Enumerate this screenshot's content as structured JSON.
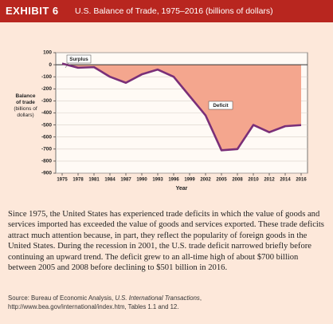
{
  "header": {
    "exhibit": "EXHIBIT 6",
    "title": "U.S. Balance of Trade, 1975–2016 (billions of dollars)"
  },
  "chart_data": {
    "type": "line",
    "y_label": "Balance of trade (billions of dollars)",
    "x_label": "Year",
    "categories": [
      "1975",
      "1978",
      "1981",
      "1984",
      "1987",
      "1990",
      "1993",
      "1996",
      "1999",
      "2002",
      "2005",
      "2008",
      "2010",
      "2012",
      "2014",
      "2016"
    ],
    "series": [
      {
        "name": "Balance of trade",
        "color": "#7a2f78",
        "values": [
          10,
          -25,
          -20,
          -100,
          -150,
          -80,
          -40,
          -100,
          -260,
          -420,
          -710,
          -700,
          -500,
          -560,
          -510,
          -501
        ]
      }
    ],
    "area_color": "#f4a68e",
    "ylim": [
      -900,
      100
    ],
    "yticks": [
      100,
      0,
      -100,
      -200,
      -300,
      -400,
      -500,
      -600,
      -700,
      -800,
      -900
    ],
    "grid": true,
    "annotations": [
      "Surplus",
      "Deficit"
    ]
  },
  "caption": "Since 1975, the United States has experienced trade deficits in which the value of goods and services imported has exceeded the value of goods and services exported. These trade deficits attract much attention because, in part, they reflect the popularity of foreign goods in the United States. During the recession in 2001, the U.S. trade deficit narrowed briefly before continuing an upward trend. The deficit grew to an all-time high of about $700 billion between 2005 and 2008 before declining to $501 billion in 2016.",
  "source": {
    "prefix": "Source: Bureau of Economic Analysis, ",
    "italic": "U.S. International Transactions",
    "suffix": ", http://www.bea.gov/international/index.htm, Tables 1.1 and 12."
  }
}
